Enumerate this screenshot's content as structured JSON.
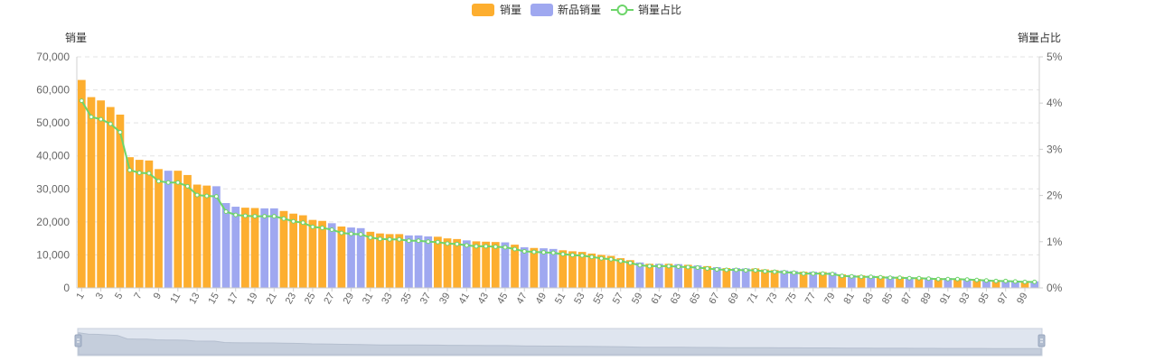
{
  "chart_data": {
    "type": "bar",
    "legend": {
      "position": "top-center",
      "items": [
        {
          "name": "销量",
          "symbol": "bar",
          "color": "#FDAE2F"
        },
        {
          "name": "新品销量",
          "symbol": "bar",
          "color": "#9FA8F0"
        },
        {
          "name": "销量占比",
          "symbol": "line-circle",
          "color": "#6DD56A"
        }
      ]
    },
    "y_left": {
      "name": "销量",
      "min": 0,
      "max": 70000,
      "interval": 10000,
      "tick_labels": [
        "0",
        "10,000",
        "20,000",
        "30,000",
        "40,000",
        "50,000",
        "60,000",
        "70,000"
      ]
    },
    "y_right": {
      "name": "销量占比",
      "min": 0,
      "max": 5,
      "unit": "%",
      "tick_labels": [
        "0%",
        "1%",
        "2%",
        "3%",
        "4%",
        "5%"
      ]
    },
    "grid": {
      "horizontal_dashed": true
    },
    "x": [
      1,
      2,
      3,
      4,
      5,
      6,
      7,
      8,
      9,
      10,
      11,
      12,
      13,
      14,
      15,
      16,
      17,
      18,
      19,
      20,
      21,
      22,
      23,
      24,
      25,
      26,
      27,
      28,
      29,
      30,
      31,
      32,
      33,
      34,
      35,
      36,
      37,
      38,
      39,
      40,
      41,
      42,
      43,
      44,
      45,
      46,
      47,
      48,
      49,
      50,
      51,
      52,
      53,
      54,
      55,
      56,
      57,
      58,
      59,
      60,
      61,
      62,
      63,
      64,
      65,
      66,
      67,
      68,
      69,
      70,
      71,
      72,
      73,
      74,
      75,
      76,
      77,
      78,
      79,
      80,
      81,
      82,
      83,
      84,
      85,
      86,
      87,
      88,
      89,
      90,
      91,
      92,
      93,
      94,
      95,
      96,
      97,
      98,
      99,
      100
    ],
    "x_tick_labels_shown": [
      "1",
      "3",
      "5",
      "7",
      "9",
      "11",
      "13",
      "15",
      "17",
      "19",
      "21",
      "23",
      "25",
      "27",
      "29",
      "31",
      "33",
      "35",
      "37",
      "39",
      "41",
      "43",
      "45",
      "47",
      "49",
      "51",
      "53",
      "55",
      "57",
      "59",
      "61",
      "63",
      "65",
      "67",
      "69",
      "71",
      "73",
      "75",
      "77",
      "79",
      "81",
      "83",
      "85",
      "87",
      "89",
      "91",
      "93",
      "95",
      "97",
      "99"
    ],
    "bars": {
      "values": [
        63000,
        57800,
        56800,
        54800,
        52500,
        39600,
        38800,
        38600,
        36000,
        35500,
        35500,
        34200,
        31300,
        31000,
        30800,
        25700,
        24600,
        24300,
        24200,
        24100,
        24100,
        23300,
        22500,
        22000,
        20600,
        20300,
        19600,
        18600,
        18300,
        18100,
        17000,
        16500,
        16300,
        16300,
        15900,
        15900,
        15600,
        15500,
        15000,
        14800,
        14400,
        14100,
        14000,
        13900,
        13800,
        13100,
        12300,
        12100,
        12000,
        11800,
        11400,
        11100,
        10900,
        10400,
        10000,
        9700,
        9000,
        8400,
        7700,
        7300,
        7300,
        7300,
        7200,
        7000,
        6800,
        6600,
        6300,
        6000,
        6000,
        5900,
        5900,
        5600,
        5400,
        5300,
        5100,
        4900,
        4900,
        4800,
        4700,
        4100,
        3900,
        3800,
        3700,
        3600,
        3500,
        3400,
        3300,
        3200,
        3100,
        3000,
        3000,
        2900,
        2800,
        2700,
        2500,
        2400,
        2300,
        2200,
        2100,
        2000
      ],
      "new_product_indices": [
        10,
        15,
        16,
        17,
        20,
        21,
        27,
        29,
        30,
        35,
        36,
        37,
        41,
        45,
        47,
        49,
        50,
        59,
        61,
        63,
        65,
        67,
        69,
        70,
        74,
        75,
        77,
        79,
        81,
        83,
        85,
        87,
        89,
        91,
        93,
        95,
        97,
        98,
        100
      ],
      "series_names": {
        "regular": "销量",
        "new": "新品销量"
      },
      "colors": {
        "regular": "#FDAE2F",
        "new": "#9FA8F0"
      }
    },
    "line": {
      "name": "销量占比",
      "axis": "right",
      "color": "#6DD56A",
      "values": [
        4.05,
        3.7,
        3.65,
        3.55,
        3.37,
        2.55,
        2.49,
        2.48,
        2.31,
        2.28,
        2.28,
        2.2,
        2.01,
        1.99,
        1.98,
        1.65,
        1.58,
        1.56,
        1.55,
        1.55,
        1.55,
        1.5,
        1.44,
        1.41,
        1.32,
        1.3,
        1.26,
        1.19,
        1.17,
        1.16,
        1.09,
        1.06,
        1.05,
        1.05,
        1.02,
        1.02,
        1.0,
        0.99,
        0.96,
        0.95,
        0.92,
        0.9,
        0.9,
        0.89,
        0.88,
        0.84,
        0.79,
        0.78,
        0.77,
        0.76,
        0.73,
        0.71,
        0.7,
        0.67,
        0.64,
        0.62,
        0.58,
        0.54,
        0.49,
        0.47,
        0.47,
        0.47,
        0.46,
        0.45,
        0.44,
        0.42,
        0.4,
        0.39,
        0.39,
        0.38,
        0.38,
        0.36,
        0.35,
        0.34,
        0.33,
        0.31,
        0.31,
        0.31,
        0.3,
        0.26,
        0.25,
        0.24,
        0.24,
        0.23,
        0.22,
        0.22,
        0.21,
        0.21,
        0.2,
        0.19,
        0.19,
        0.19,
        0.18,
        0.17,
        0.16,
        0.15,
        0.15,
        0.14,
        0.13,
        0.13
      ]
    },
    "data_zoom": {
      "start_percent": 0,
      "end_percent": 100
    }
  }
}
